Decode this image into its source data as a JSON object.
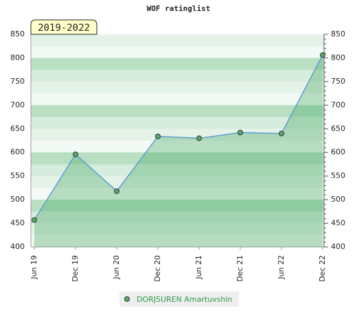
{
  "chart_data": {
    "type": "area",
    "title": "WOF ratinglist",
    "annotation": "2019-2022",
    "categories": [
      "Jun 19",
      "Dec 19",
      "Jun 20",
      "Dec 20",
      "Jun 21",
      "Dec 21",
      "Jun 22",
      "Dec 22"
    ],
    "series": [
      {
        "name": "DORJSUREN Amartuvshin",
        "color": "#5b9bd5",
        "values": [
          457,
          596,
          518,
          634,
          630,
          642,
          640,
          806
        ]
      }
    ],
    "ylim": [
      400,
      850
    ],
    "yticks": [
      400,
      450,
      500,
      550,
      600,
      650,
      700,
      750,
      800,
      850
    ]
  }
}
